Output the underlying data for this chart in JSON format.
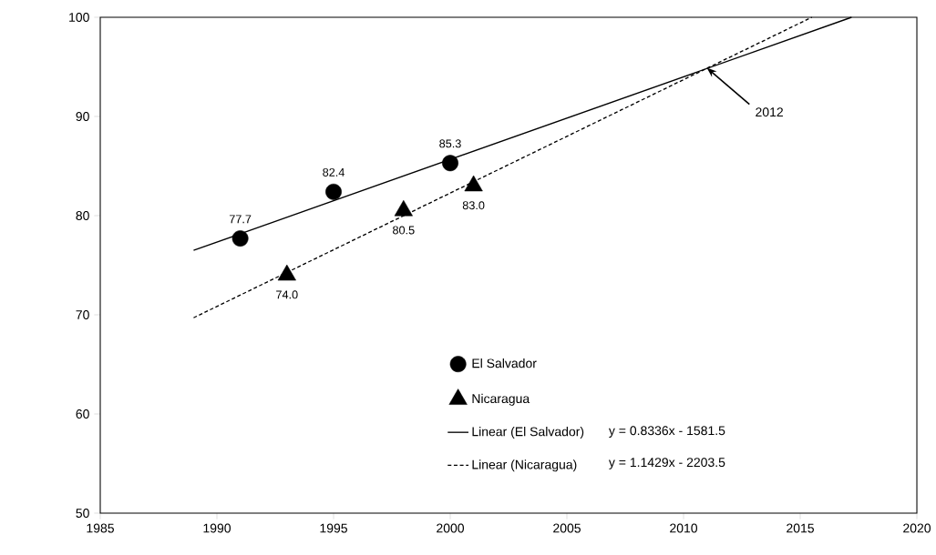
{
  "chart_data": {
    "type": "scatter",
    "series": [
      {
        "name": "El Salvador",
        "marker": "circle",
        "color": "#000000",
        "x": [
          1991,
          1995,
          2000
        ],
        "values": [
          77.7,
          82.4,
          85.3
        ],
        "value_labels": [
          "77.7",
          "82.4",
          "85.3"
        ]
      },
      {
        "name": "Nicaragua",
        "marker": "triangle",
        "color": "#000000",
        "x": [
          1993,
          1998,
          2001
        ],
        "values": [
          74.0,
          80.5,
          83.0
        ],
        "value_labels": [
          "74.0",
          "80.5",
          "83.0"
        ]
      },
      {
        "name": "Linear (El Salvador)",
        "type": "line",
        "line_style": "solid",
        "marker": "none",
        "color": "#000000",
        "x": [
          1989,
          2017.2
        ],
        "values": [
          76.5,
          100.0
        ]
      },
      {
        "name": "Linear (Nicaragua)",
        "type": "line",
        "line_style": "dashed",
        "marker": "none",
        "color": "#000000",
        "x": [
          1989,
          2015.5
        ],
        "values": [
          69.7,
          100.0
        ]
      }
    ],
    "xlim": [
      1985,
      2020
    ],
    "xticks": [
      1985,
      1990,
      1995,
      2000,
      2005,
      2010,
      2015,
      2020
    ],
    "ylim": [
      50,
      100
    ],
    "yticks": [
      50,
      60,
      70,
      80,
      90,
      100
    ],
    "grid": false,
    "legend": "bottom",
    "annotations": [
      {
        "text": "2012",
        "x": 2011.0,
        "y": 94.9
      },
      "y = 0.8336x - 1581.5",
      "y = 1.1429x - 2203.5"
    ]
  }
}
